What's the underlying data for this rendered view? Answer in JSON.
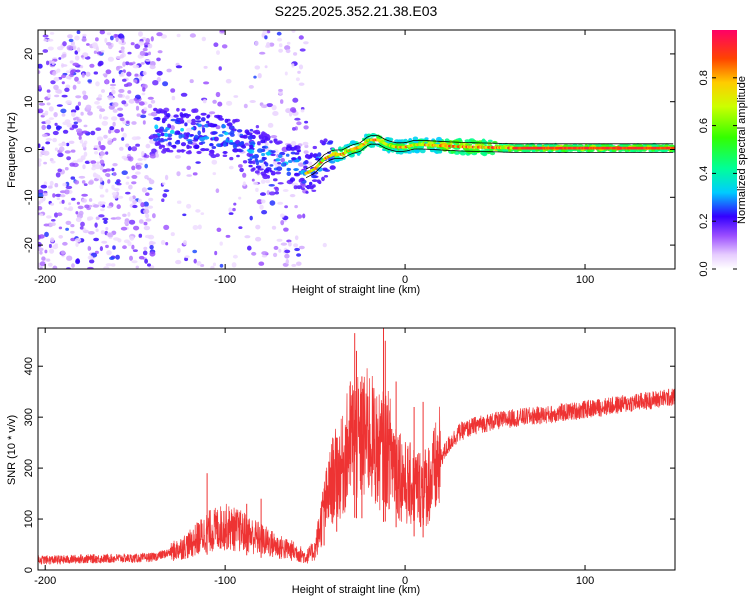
{
  "title": "S225.2025.352.21.38.E03",
  "chart_data": [
    {
      "type": "heatmap",
      "xlabel": "Height of straight line (km)",
      "ylabel": "Frequency (Hz)",
      "xlim": [
        -204,
        150
      ],
      "ylim": [
        -25,
        25
      ],
      "xticks": [
        -200,
        -100,
        0,
        100
      ],
      "yticks": [
        -20,
        -10,
        0,
        10,
        20
      ],
      "x_tick_labels": [
        "-200",
        "-100",
        "0",
        "100"
      ],
      "y_tick_labels": [
        "-20",
        "-10",
        "0",
        "10",
        "20"
      ],
      "colorbar": {
        "label": "Normalized spectral amplitude",
        "range": [
          0,
          1
        ],
        "ticks": [
          0.0,
          0.2,
          0.4,
          0.6,
          0.8
        ],
        "tick_labels": [
          "0.0",
          "0.2",
          "0.4",
          "0.6",
          "0.8"
        ]
      },
      "ridge": {
        "x": [
          -125,
          -110,
          -100,
          -90,
          -80,
          -70,
          -60,
          -55,
          -50,
          -45,
          -40,
          -35,
          -30,
          -25,
          -20,
          -15,
          -10,
          -5,
          0,
          5,
          10,
          20,
          30,
          40,
          50,
          60,
          80,
          100,
          120,
          150
        ],
        "y": [
          4,
          3.5,
          3,
          1,
          -1,
          -2.5,
          -3.5,
          -5,
          -4,
          -2,
          -1,
          -1,
          0,
          0.5,
          2,
          2,
          1,
          0.5,
          0.5,
          1,
          1,
          0.8,
          0.6,
          0.5,
          0.4,
          0.3,
          0.3,
          0.3,
          0.3,
          0.3
        ]
      }
    },
    {
      "type": "line",
      "xlabel": "Height of straight line (km)",
      "ylabel": "SNR (10 * v/v)",
      "xlim": [
        -204,
        150
      ],
      "ylim": [
        0,
        475
      ],
      "xticks": [
        -200,
        -100,
        0,
        100
      ],
      "yticks": [
        0,
        100,
        200,
        300,
        400
      ],
      "x_tick_labels": [
        "-200",
        "-100",
        "0",
        "100"
      ],
      "y_tick_labels": [
        "0",
        "100",
        "200",
        "300",
        "400"
      ],
      "series": [
        {
          "color": "#ee3333",
          "x": [
            -204,
            -190,
            -180,
            -170,
            -160,
            -150,
            -140,
            -130,
            -120,
            -110,
            -100,
            -90,
            -80,
            -70,
            -60,
            -55,
            -50,
            -45,
            -40,
            -35,
            -30,
            -25,
            -20,
            -15,
            -10,
            -5,
            0,
            5,
            10,
            15,
            20,
            25,
            30,
            40,
            50,
            60,
            70,
            80,
            90,
            100,
            110,
            120,
            130,
            140,
            150
          ],
          "y": [
            20,
            20,
            22,
            22,
            23,
            23,
            25,
            35,
            50,
            75,
            85,
            75,
            60,
            45,
            35,
            25,
            40,
            120,
            180,
            200,
            260,
            250,
            270,
            230,
            240,
            210,
            170,
            165,
            160,
            180,
            220,
            250,
            270,
            285,
            292,
            298,
            302,
            305,
            310,
            315,
            320,
            325,
            330,
            335,
            340
          ]
        }
      ],
      "spikes": {
        "x": [
          -110,
          -88,
          -80,
          -45,
          -38,
          -28,
          -27,
          -24,
          -12,
          -11,
          -5,
          5,
          10
        ],
        "y": [
          190,
          130,
          140,
          160,
          260,
          465,
          430,
          380,
          475,
          450,
          370,
          320,
          330
        ]
      }
    }
  ]
}
